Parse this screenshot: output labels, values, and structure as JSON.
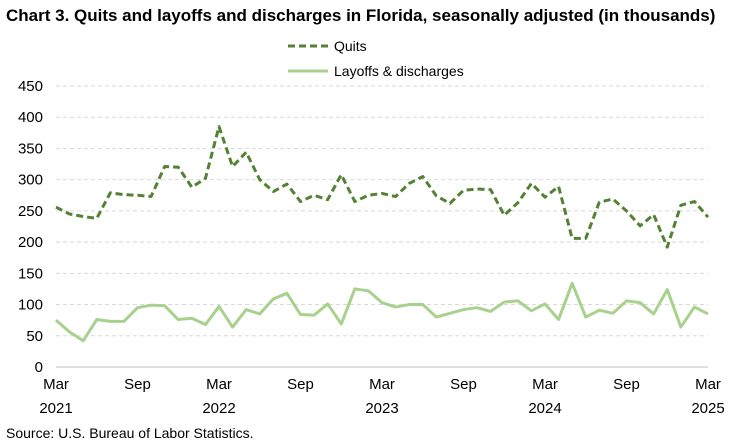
{
  "chart_data": {
    "type": "line",
    "title": "Chart 3. Quits and layoffs and discharges in Florida, seasonally adjusted (in thousands)",
    "source": "Source: U.S. Bureau of Labor Statistics.",
    "xlabel": "",
    "ylabel": "",
    "ylim": [
      0,
      450
    ],
    "yticks": [
      "0",
      "50",
      "100",
      "150",
      "200",
      "250",
      "300",
      "350",
      "400",
      "450"
    ],
    "grid": true,
    "legend_position": "top-center",
    "x_tick_labels": [
      {
        "month": "Mar",
        "year": "2021"
      },
      {
        "month": "Sep",
        "year": ""
      },
      {
        "month": "Mar",
        "year": "2022"
      },
      {
        "month": "Sep",
        "year": ""
      },
      {
        "month": "Mar",
        "year": "2023"
      },
      {
        "month": "Sep",
        "year": ""
      },
      {
        "month": "Mar",
        "year": "2024"
      },
      {
        "month": "Sep",
        "year": ""
      },
      {
        "month": "Mar",
        "year": "2025"
      }
    ],
    "series": [
      {
        "name": "Quits",
        "color": "#548235",
        "style": "dashed",
        "values": [
          256,
          245,
          241,
          238,
          279,
          276,
          275,
          273,
          321,
          320,
          288,
          302,
          385,
          321,
          344,
          300,
          281,
          293,
          265,
          275,
          268,
          308,
          265,
          275,
          278,
          273,
          294,
          305,
          274,
          262,
          283,
          285,
          284,
          243,
          263,
          294,
          272,
          289,
          206,
          206,
          264,
          269,
          250,
          226,
          244,
          192,
          259,
          265,
          240
        ]
      },
      {
        "name": "Layoffs & discharges",
        "color": "#a9d18e",
        "style": "solid",
        "values": [
          75,
          56,
          42,
          76,
          73,
          73,
          95,
          99,
          98,
          76,
          78,
          68,
          97,
          64,
          92,
          85,
          109,
          118,
          84,
          83,
          101,
          69,
          125,
          122,
          103,
          96,
          100,
          100,
          80,
          86,
          92,
          95,
          89,
          104,
          106,
          90,
          101,
          76,
          134,
          80,
          91,
          86,
          106,
          103,
          85,
          124,
          64,
          96,
          85
        ]
      }
    ]
  }
}
